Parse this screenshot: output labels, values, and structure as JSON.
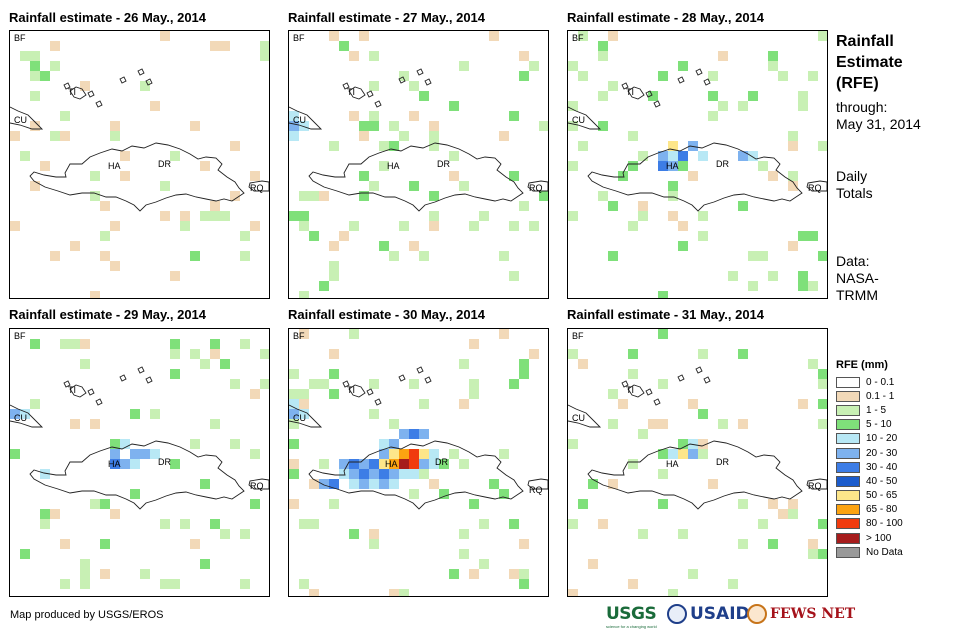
{
  "panels": [
    {
      "title": "Rainfall estimate - 26 May., 2014"
    },
    {
      "title": "Rainfall estimate - 27 May., 2014"
    },
    {
      "title": "Rainfall estimate - 28 May., 2014"
    },
    {
      "title": "Rainfall estimate - 29 May., 2014"
    },
    {
      "title": "Rainfall estimate - 30 May., 2014"
    },
    {
      "title": "Rainfall estimate - 31 May., 2014"
    }
  ],
  "map_labels": {
    "bf": "BF",
    "cu": "CU",
    "ti": "TI",
    "ha": "HA",
    "dr": "DR",
    "rq": "RQ"
  },
  "side": {
    "title_lines": [
      "Rainfall",
      "Estimate",
      "(RFE)"
    ],
    "through_label": "through:",
    "through_date": "May 31, 2014",
    "daily_lines": [
      "Daily",
      "Totals"
    ],
    "data_lines": [
      "Data:",
      "NASA-",
      "TRMM"
    ]
  },
  "legend": {
    "title": "RFE (mm)",
    "items": [
      {
        "label": "0 - 0.1",
        "color": "#ffffff"
      },
      {
        "label": "0.1 - 1",
        "color": "#f2d9b8"
      },
      {
        "label": "1 - 5",
        "color": "#c8f0b4"
      },
      {
        "label": "5 - 10",
        "color": "#7fe07a"
      },
      {
        "label": "10 - 20",
        "color": "#b8e8f5"
      },
      {
        "label": "20 - 30",
        "color": "#7eb2ef"
      },
      {
        "label": "30 - 40",
        "color": "#3d7de6"
      },
      {
        "label": "40 - 50",
        "color": "#1c5ccc"
      },
      {
        "label": "50 - 65",
        "color": "#fde68a"
      },
      {
        "label": "65 - 80",
        "color": "#fca311"
      },
      {
        "label": "80 - 100",
        "color": "#f03b0e"
      },
      {
        "label": "> 100",
        "color": "#a61c1c"
      },
      {
        "label": "No Data",
        "color": "#999999"
      }
    ]
  },
  "footer": {
    "credit": "Map produced by USGS/EROS"
  },
  "logos": {
    "usgs": "USGS",
    "usgs_tag": "science for a changing world",
    "usaid": "USAID",
    "fews": "FEWS NET"
  }
}
